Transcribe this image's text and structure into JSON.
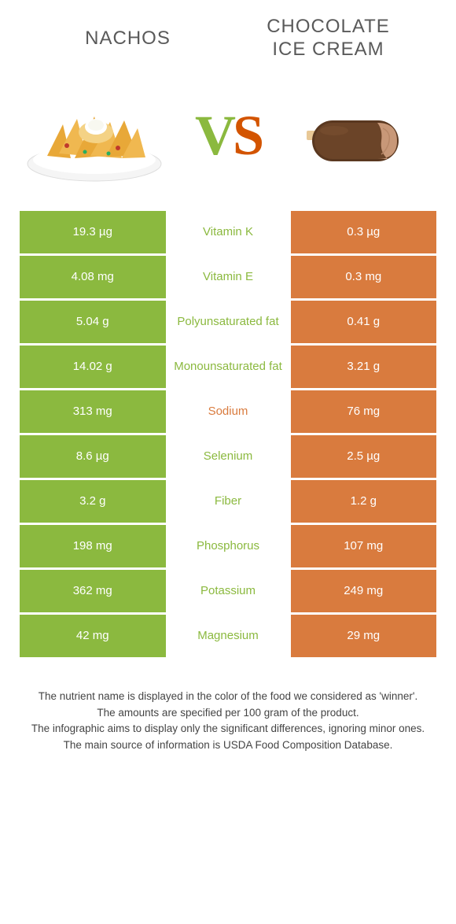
{
  "colors": {
    "green": "#8bb93f",
    "orange": "#d97b3e",
    "text": "#333333",
    "white": "#ffffff"
  },
  "header": {
    "left_title": "NACHOS",
    "right_title_line1": "CHOCOLATE",
    "right_title_line2": "ICE CREAM"
  },
  "vs": {
    "v": "V",
    "s": "S"
  },
  "food_images": {
    "left_alt": "nachos-image",
    "right_alt": "chocolate-ice-cream-image"
  },
  "nutrients": [
    {
      "name": "Vitamin K",
      "left": "19.3 µg",
      "right": "0.3 µg",
      "winner": "left"
    },
    {
      "name": "Vitamin E",
      "left": "4.08 mg",
      "right": "0.3 mg",
      "winner": "left"
    },
    {
      "name": "Polyunsaturated fat",
      "left": "5.04 g",
      "right": "0.41 g",
      "winner": "left"
    },
    {
      "name": "Monounsaturated fat",
      "left": "14.02 g",
      "right": "3.21 g",
      "winner": "left"
    },
    {
      "name": "Sodium",
      "left": "313 mg",
      "right": "76 mg",
      "winner": "right"
    },
    {
      "name": "Selenium",
      "left": "8.6 µg",
      "right": "2.5 µg",
      "winner": "left"
    },
    {
      "name": "Fiber",
      "left": "3.2 g",
      "right": "1.2 g",
      "winner": "left"
    },
    {
      "name": "Phosphorus",
      "left": "198 mg",
      "right": "107 mg",
      "winner": "left"
    },
    {
      "name": "Potassium",
      "left": "362 mg",
      "right": "249 mg",
      "winner": "left"
    },
    {
      "name": "Magnesium",
      "left": "42 mg",
      "right": "29 mg",
      "winner": "left"
    }
  ],
  "notes": {
    "line1": "The nutrient name is displayed in the color of the food we considered as 'winner'.",
    "line2": "The amounts are specified per 100 gram of the product.",
    "line3": "The infographic aims to display only the significant differences, ignoring minor ones.",
    "line4": "The main source of information is USDA Food Composition Database."
  }
}
